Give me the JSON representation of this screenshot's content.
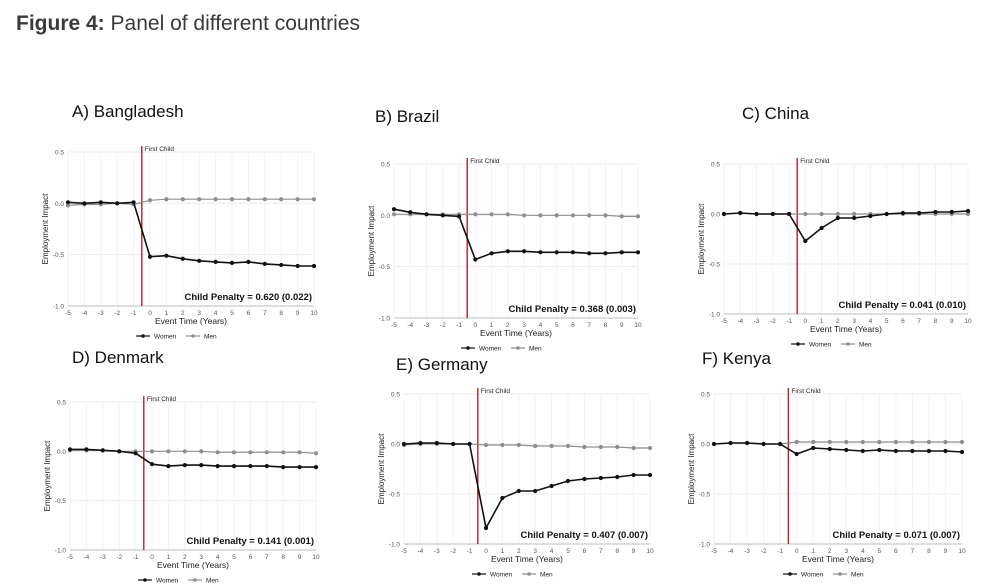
{
  "figure": {
    "lead": "Figure 4:",
    "caption": "Panel of different countries"
  },
  "colors": {
    "women": "#111111",
    "men": "#8e8e8e",
    "marker": "#b22222",
    "grid": "#ebebeb",
    "axis": "#555555"
  },
  "legend": {
    "women": "Women",
    "men": "Men"
  },
  "chart_data": [
    {
      "type": "line",
      "title": "A) Bangladesh",
      "xlabel": "Event Time (Years)",
      "ylabel": "Employment Impact",
      "x": [
        -5,
        -4,
        -3,
        -2,
        -1,
        0,
        1,
        2,
        3,
        4,
        5,
        6,
        7,
        8,
        9,
        10
      ],
      "xlim": [
        -5,
        10
      ],
      "ylim": [
        -1.0,
        0.5
      ],
      "y_ticks": [
        "0.5",
        "0.0",
        "-0.5",
        "-1.0"
      ],
      "x_ticks": [
        "-5",
        "-4",
        "-3",
        "-2",
        "-1",
        "0",
        "1",
        "2",
        "3",
        "4",
        "5",
        "6",
        "7",
        "8",
        "9",
        "10"
      ],
      "event_label": "First Child",
      "penalty_label": "Child Penalty = 0.620 (0.022)",
      "series": [
        {
          "name": "Women",
          "values": [
            0.01,
            0.0,
            0.01,
            0.0,
            0.01,
            -0.52,
            -0.51,
            -0.54,
            -0.56,
            -0.57,
            -0.58,
            -0.57,
            -0.59,
            -0.6,
            -0.61,
            -0.61
          ]
        },
        {
          "name": "Men",
          "values": [
            -0.02,
            -0.01,
            -0.01,
            0.0,
            -0.01,
            0.03,
            0.04,
            0.04,
            0.04,
            0.04,
            0.04,
            0.04,
            0.04,
            0.04,
            0.04,
            0.04
          ]
        }
      ]
    },
    {
      "type": "line",
      "title": "B) Brazil",
      "xlabel": "Event Time (Years)",
      "ylabel": "Employment Impact",
      "x": [
        -5,
        -4,
        -3,
        -2,
        -1,
        0,
        1,
        2,
        3,
        4,
        5,
        6,
        7,
        8,
        9,
        10
      ],
      "xlim": [
        -5,
        10
      ],
      "ylim": [
        -1.0,
        0.5
      ],
      "y_ticks": [
        "0.5",
        "0.0",
        "-0.5",
        "-1.0"
      ],
      "x_ticks": [
        "-5",
        "-4",
        "-3",
        "-2",
        "-1",
        "0",
        "1",
        "2",
        "3",
        "4",
        "5",
        "6",
        "7",
        "8",
        "9",
        "10"
      ],
      "event_label": "First Child",
      "penalty_label": "Child Penalty = 0.368 (0.003)",
      "series": [
        {
          "name": "Women",
          "values": [
            0.06,
            0.03,
            0.01,
            0.0,
            -0.01,
            -0.43,
            -0.37,
            -0.35,
            -0.35,
            -0.36,
            -0.36,
            -0.36,
            -0.37,
            -0.37,
            -0.36,
            -0.36
          ]
        },
        {
          "name": "Men",
          "values": [
            0.01,
            0.01,
            0.01,
            0.01,
            0.01,
            0.01,
            0.01,
            0.01,
            0.0,
            0.0,
            0.0,
            0.0,
            0.0,
            0.0,
            -0.01,
            -0.01
          ]
        }
      ]
    },
    {
      "type": "line",
      "title": "C) China",
      "xlabel": "Event Time (Years)",
      "ylabel": "Employment Impact",
      "x": [
        -5,
        -4,
        -3,
        -2,
        -1,
        0,
        1,
        2,
        3,
        4,
        5,
        6,
        7,
        8,
        9,
        10
      ],
      "xlim": [
        -5,
        10
      ],
      "ylim": [
        -1.0,
        0.5
      ],
      "y_ticks": [
        "0.5",
        "0.0",
        "-0.5",
        "-1.0"
      ],
      "x_ticks": [
        "-5",
        "-4",
        "-3",
        "-2",
        "-1",
        "0",
        "1",
        "2",
        "3",
        "4",
        "5",
        "6",
        "7",
        "8",
        "9",
        "10"
      ],
      "event_label": "First Child",
      "penalty_label": "Child Penalty = 0.041 (0.010)",
      "series": [
        {
          "name": "Women",
          "values": [
            0.0,
            0.01,
            0.0,
            0.0,
            0.0,
            -0.27,
            -0.14,
            -0.04,
            -0.04,
            -0.02,
            0.0,
            0.01,
            0.01,
            0.02,
            0.02,
            0.03
          ]
        },
        {
          "name": "Men",
          "values": [
            0.0,
            0.01,
            0.0,
            0.0,
            0.0,
            0.0,
            0.0,
            0.0,
            0.0,
            0.0,
            0.0,
            0.0,
            0.0,
            0.0,
            0.0,
            0.0
          ]
        }
      ]
    },
    {
      "type": "line",
      "title": "D) Denmark",
      "xlabel": "Event Time (Years)",
      "ylabel": "Employment Impact",
      "x": [
        -5,
        -4,
        -3,
        -2,
        -1,
        0,
        1,
        2,
        3,
        4,
        5,
        6,
        7,
        8,
        9,
        10
      ],
      "xlim": [
        -5,
        10
      ],
      "ylim": [
        -1.0,
        0.5
      ],
      "y_ticks": [
        "0.5",
        "0.0",
        "-0.5",
        "-1.0"
      ],
      "x_ticks": [
        "-5",
        "-4",
        "-3",
        "-2",
        "-1",
        "0",
        "1",
        "2",
        "3",
        "4",
        "5",
        "6",
        "7",
        "8",
        "9",
        "10"
      ],
      "event_label": "First Child",
      "penalty_label": "Child Penalty = 0.141 (0.001)",
      "series": [
        {
          "name": "Women",
          "values": [
            0.02,
            0.02,
            0.01,
            0.0,
            -0.02,
            -0.13,
            -0.15,
            -0.14,
            -0.14,
            -0.15,
            -0.15,
            -0.15,
            -0.15,
            -0.16,
            -0.16,
            -0.16
          ]
        },
        {
          "name": "Men",
          "values": [
            0.01,
            0.01,
            0.01,
            0.0,
            0.0,
            0.0,
            0.0,
            0.0,
            0.0,
            -0.01,
            -0.01,
            -0.01,
            -0.01,
            -0.01,
            -0.01,
            -0.02
          ]
        }
      ]
    },
    {
      "type": "line",
      "title": "E) Germany",
      "xlabel": "Event Time (Years)",
      "ylabel": "Employment Impact",
      "x": [
        -5,
        -4,
        -3,
        -2,
        -1,
        0,
        1,
        2,
        3,
        4,
        5,
        6,
        7,
        8,
        9,
        10
      ],
      "xlim": [
        -5,
        10
      ],
      "ylim": [
        -1.0,
        0.5
      ],
      "y_ticks": [
        "0.5",
        "0.0",
        "-0.5",
        "-1.0"
      ],
      "x_ticks": [
        "-5",
        "-4",
        "-3",
        "-2",
        "-1",
        "0",
        "1",
        "2",
        "3",
        "4",
        "5",
        "6",
        "7",
        "8",
        "9",
        "10"
      ],
      "event_label": "First Child",
      "penalty_label": "Child Penalty = 0.407 (0.007)",
      "series": [
        {
          "name": "Women",
          "values": [
            0.0,
            0.01,
            0.01,
            0.0,
            0.0,
            -0.84,
            -0.54,
            -0.47,
            -0.47,
            -0.42,
            -0.37,
            -0.35,
            -0.34,
            -0.33,
            -0.31,
            -0.31
          ]
        },
        {
          "name": "Men",
          "values": [
            -0.01,
            0.0,
            0.0,
            0.0,
            0.0,
            -0.01,
            -0.01,
            -0.01,
            -0.02,
            -0.02,
            -0.02,
            -0.03,
            -0.03,
            -0.03,
            -0.04,
            -0.04
          ]
        }
      ]
    },
    {
      "type": "line",
      "title": "F) Kenya",
      "xlabel": "Event Time (Years)",
      "ylabel": "Employment Impact",
      "x": [
        -5,
        -4,
        -3,
        -2,
        -1,
        0,
        1,
        2,
        3,
        4,
        5,
        6,
        7,
        8,
        9,
        10
      ],
      "xlim": [
        -5,
        10
      ],
      "ylim": [
        -1.0,
        0.5
      ],
      "y_ticks": [
        "0.5",
        "0.0",
        "-0.5",
        "-1.0"
      ],
      "x_ticks": [
        "-5",
        "-4",
        "-3",
        "-2",
        "-1",
        "0",
        "1",
        "2",
        "3",
        "4",
        "5",
        "6",
        "7",
        "8",
        "9",
        "10"
      ],
      "event_label": "First Child",
      "penalty_label": "Child Penalty = 0.071 (0.007)",
      "series": [
        {
          "name": "Women",
          "values": [
            0.0,
            0.01,
            0.01,
            0.0,
            0.0,
            -0.1,
            -0.04,
            -0.05,
            -0.06,
            -0.07,
            -0.06,
            -0.07,
            -0.07,
            -0.07,
            -0.07,
            -0.08
          ]
        },
        {
          "name": "Men",
          "values": [
            0.0,
            0.01,
            0.01,
            0.0,
            0.0,
            0.02,
            0.02,
            0.02,
            0.02,
            0.02,
            0.02,
            0.02,
            0.02,
            0.02,
            0.02,
            0.02
          ]
        }
      ]
    }
  ]
}
